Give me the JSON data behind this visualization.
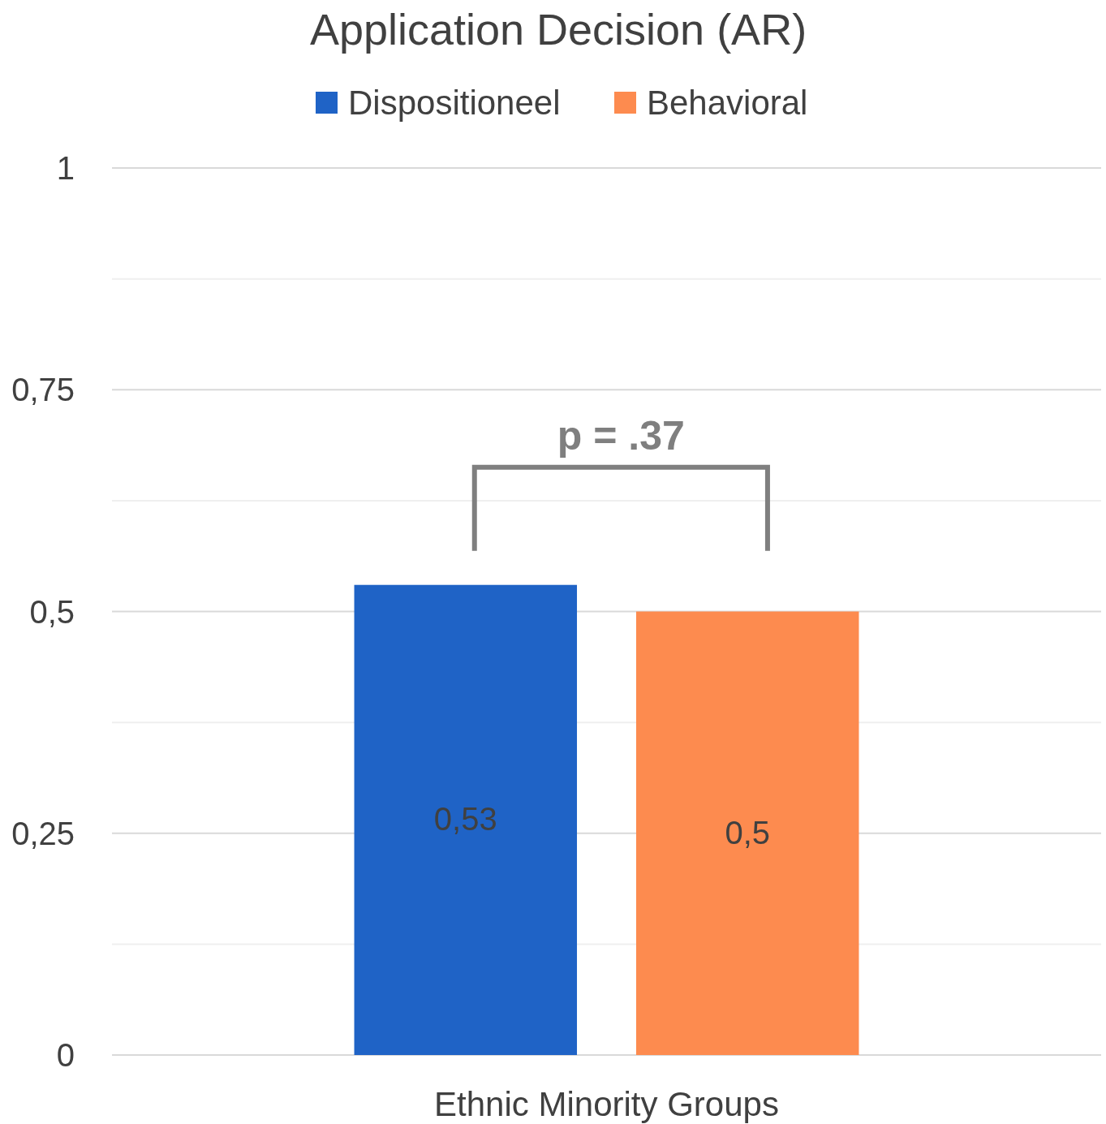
{
  "chart_data": {
    "type": "bar",
    "title": "Application Decision (AR)",
    "categories": [
      "Ethnic Minority Groups"
    ],
    "series": [
      {
        "name": "Dispositioneel",
        "color": "#1f63c6",
        "values": [
          0.53
        ],
        "value_labels": [
          "0,53"
        ]
      },
      {
        "name": "Behavioral",
        "color": "#fd8b4f",
        "values": [
          0.5
        ],
        "value_labels": [
          "0,5"
        ]
      }
    ],
    "ylim": [
      0,
      1
    ],
    "yticks": [
      {
        "value": 0,
        "label": "0"
      },
      {
        "value": 0.125,
        "label": null
      },
      {
        "value": 0.25,
        "label": "0,25"
      },
      {
        "value": 0.375,
        "label": null
      },
      {
        "value": 0.5,
        "label": "0,5"
      },
      {
        "value": 0.625,
        "label": null
      },
      {
        "value": 0.75,
        "label": "0,75"
      },
      {
        "value": 0.875,
        "label": null
      },
      {
        "value": 1,
        "label": "1"
      }
    ],
    "grid": "y",
    "legend": "top",
    "annotations": [
      "p = .37"
    ]
  }
}
